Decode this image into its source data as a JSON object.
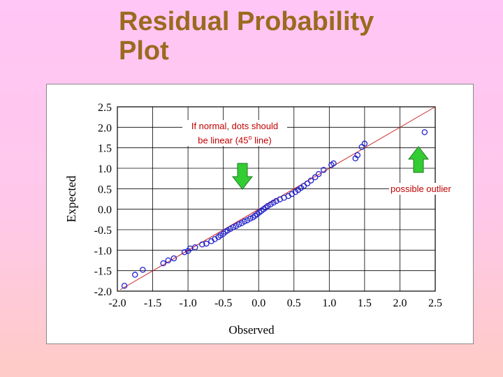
{
  "title_line1": "Residual Probability",
  "title_line2": "Plot",
  "annotations": {
    "normal_line1": "If normal, dots should",
    "normal_line2_prefix": "be linear (45",
    "normal_line2_degree": "o",
    "normal_line2_suffix": " line)",
    "outlier": "possible outlier"
  },
  "colors": {
    "title": "#9b6a1f",
    "points": "#2222cc",
    "reference_line": "#cc2222",
    "annotation_text": "#c00000",
    "arrow_fill": "#33cc33"
  },
  "icons": {
    "down_arrow": "down-arrow-icon",
    "up_arrow": "up-arrow-icon"
  },
  "chart_data": {
    "type": "scatter",
    "xlabel": "Observed",
    "ylabel": "Expected",
    "xlim": [
      -2.0,
      2.5
    ],
    "ylim": [
      -2.0,
      2.5
    ],
    "grid": true,
    "xticks": [
      "-2.0",
      "-1.5",
      "-1.0",
      "-0.5",
      "0.0",
      "0.5",
      "1.0",
      "1.5",
      "2.0",
      "2.5"
    ],
    "yticks": [
      "2.5",
      "2.0",
      "1.5",
      "1.0",
      "0.5",
      "0.0",
      "-0.5",
      "-1.0",
      "-1.5",
      "-2.0"
    ],
    "reference_line": {
      "from": [
        -2.0,
        -2.0
      ],
      "to": [
        2.5,
        2.5
      ]
    },
    "points": [
      [
        -1.9,
        -1.87
      ],
      [
        -1.75,
        -1.6
      ],
      [
        -1.64,
        -1.48
      ],
      [
        -1.35,
        -1.32
      ],
      [
        -1.28,
        -1.25
      ],
      [
        -1.2,
        -1.2
      ],
      [
        -1.05,
        -1.05
      ],
      [
        -1.0,
        -1.02
      ],
      [
        -0.97,
        -0.96
      ],
      [
        -0.9,
        -0.93
      ],
      [
        -0.8,
        -0.86
      ],
      [
        -0.74,
        -0.84
      ],
      [
        -0.67,
        -0.78
      ],
      [
        -0.62,
        -0.73
      ],
      [
        -0.57,
        -0.68
      ],
      [
        -0.54,
        -0.64
      ],
      [
        -0.5,
        -0.6
      ],
      [
        -0.47,
        -0.55
      ],
      [
        -0.44,
        -0.52
      ],
      [
        -0.4,
        -0.48
      ],
      [
        -0.36,
        -0.44
      ],
      [
        -0.32,
        -0.41
      ],
      [
        -0.28,
        -0.37
      ],
      [
        -0.24,
        -0.34
      ],
      [
        -0.2,
        -0.3
      ],
      [
        -0.16,
        -0.27
      ],
      [
        -0.12,
        -0.23
      ],
      [
        -0.08,
        -0.2
      ],
      [
        -0.05,
        -0.16
      ],
      [
        -0.02,
        -0.12
      ],
      [
        0.01,
        -0.08
      ],
      [
        0.04,
        -0.04
      ],
      [
        0.07,
        0.0
      ],
      [
        0.1,
        0.04
      ],
      [
        0.13,
        0.08
      ],
      [
        0.17,
        0.12
      ],
      [
        0.21,
        0.16
      ],
      [
        0.25,
        0.2
      ],
      [
        0.3,
        0.24
      ],
      [
        0.36,
        0.28
      ],
      [
        0.42,
        0.32
      ],
      [
        0.47,
        0.37
      ],
      [
        0.52,
        0.42
      ],
      [
        0.56,
        0.47
      ],
      [
        0.6,
        0.52
      ],
      [
        0.64,
        0.57
      ],
      [
        0.69,
        0.63
      ],
      [
        0.74,
        0.7
      ],
      [
        0.8,
        0.78
      ],
      [
        0.85,
        0.86
      ],
      [
        0.92,
        0.96
      ],
      [
        1.03,
        1.08
      ],
      [
        1.06,
        1.12
      ],
      [
        1.37,
        1.24
      ],
      [
        1.4,
        1.32
      ],
      [
        1.46,
        1.52
      ],
      [
        1.5,
        1.6
      ],
      [
        2.35,
        1.88
      ]
    ]
  }
}
